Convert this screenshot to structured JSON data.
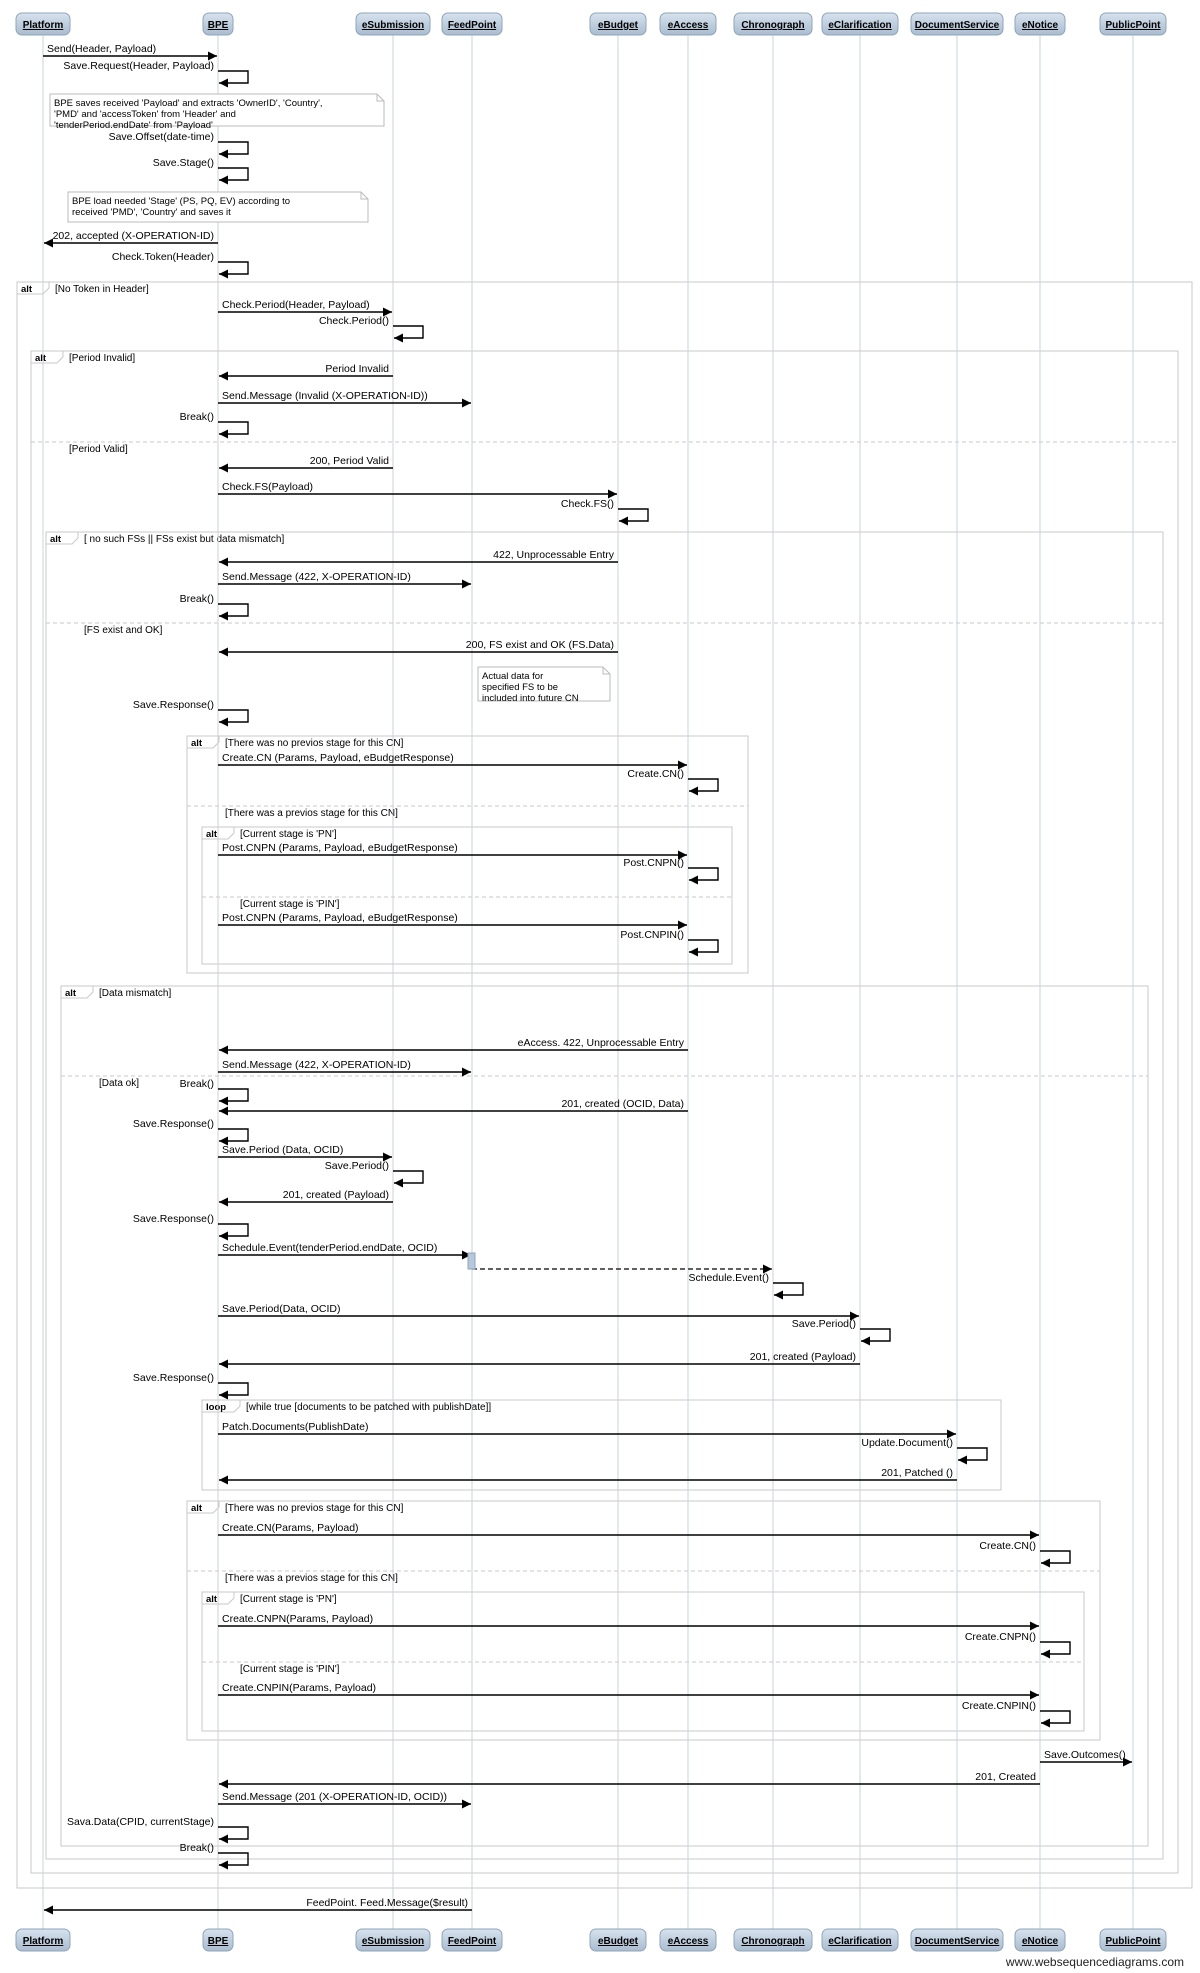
{
  "participants": [
    "Platform",
    "BPE",
    "eSubmission",
    "FeedPoint",
    "eBudget",
    "eAccess",
    "Chronograph",
    "eClarification",
    "DocumentService",
    "eNotice",
    "PublicPoint"
  ],
  "watermark": "www.websequencediagrams.com",
  "messages": [
    {
      "from": "Platform",
      "to": "BPE",
      "label": "Send(Header, Payload)"
    },
    {
      "from": "BPE",
      "to": "BPE",
      "label": "Save.Request(Header, Payload)"
    },
    {
      "note": "BPE saves received 'Payload' and extracts 'OwnerID', 'Country', 'PMD' and 'accessToken' from 'Header' and 'tenderPeriod.endDate' from 'Payload'"
    },
    {
      "from": "BPE",
      "to": "BPE",
      "label": "Save.Offset(date-time)"
    },
    {
      "from": "BPE",
      "to": "BPE",
      "label": "Save.Stage()"
    },
    {
      "note": "BPE load needed 'Stage' (PS, PQ, EV) according to received 'PMD', 'Country' and saves it"
    },
    {
      "from": "BPE",
      "to": "Platform",
      "label": "202, accepted (X-OPERATION-ID)"
    },
    {
      "from": "BPE",
      "to": "BPE",
      "label": "Check.Token(Header)"
    },
    {
      "from": "BPE",
      "to": "eSubmission",
      "label": "Check.Period(Header, Payload)"
    },
    {
      "from": "eSubmission",
      "to": "eSubmission",
      "label": "Check.Period()"
    },
    {
      "from": "eSubmission",
      "to": "BPE",
      "label": "Period Invalid"
    },
    {
      "from": "BPE",
      "to": "FeedPoint",
      "label": "Send.Message (Invalid (X-OPERATION-ID))"
    },
    {
      "from": "BPE",
      "to": "BPE",
      "label": "Break()"
    },
    {
      "from": "eSubmission",
      "to": "BPE",
      "label": "200, Period Valid"
    },
    {
      "from": "BPE",
      "to": "eBudget",
      "label": "Check.FS(Payload)"
    },
    {
      "from": "eBudget",
      "to": "eBudget",
      "label": "Check.FS()"
    },
    {
      "from": "eBudget",
      "to": "BPE",
      "label": "422, Unprocessable Entry"
    },
    {
      "from": "BPE",
      "to": "FeedPoint",
      "label": "Send.Message (422, X-OPERATION-ID)"
    },
    {
      "from": "BPE",
      "to": "BPE",
      "label": "Break()"
    },
    {
      "from": "eBudget",
      "to": "BPE",
      "label": "200, FS exist and OK (FS.Data)"
    },
    {
      "note": "Actual data for specified FS to be included into future CN"
    },
    {
      "from": "BPE",
      "to": "BPE",
      "label": "Save.Response()"
    },
    {
      "from": "BPE",
      "to": "eAccess",
      "label": "Create.CN (Params, Payload, eBudgetResponse)"
    },
    {
      "from": "eAccess",
      "to": "eAccess",
      "label": "Create.CN()"
    },
    {
      "from": "BPE",
      "to": "eAccess",
      "label": "Post.CNPN (Params, Payload, eBudgetResponse)"
    },
    {
      "from": "eAccess",
      "to": "eAccess",
      "label": "Post.CNPN()"
    },
    {
      "from": "BPE",
      "to": "eAccess",
      "label": "Post.CNPN (Params, Payload, eBudgetResponse)"
    },
    {
      "from": "eAccess",
      "to": "eAccess",
      "label": "Post.CNPIN()"
    },
    {
      "from": "eAccess",
      "to": "BPE",
      "label": "eAccess. 422, Unprocessable Entry"
    },
    {
      "from": "BPE",
      "to": "FeedPoint",
      "label": "Send.Message (422, X-OPERATION-ID)"
    },
    {
      "from": "BPE",
      "to": "BPE",
      "label": "Break()"
    },
    {
      "from": "eAccess",
      "to": "BPE",
      "label": "201, created (OCID, Data)"
    },
    {
      "from": "BPE",
      "to": "BPE",
      "label": "Save.Response()"
    },
    {
      "from": "BPE",
      "to": "eSubmission",
      "label": "Save.Period (Data, OCID)"
    },
    {
      "from": "eSubmission",
      "to": "eSubmission",
      "label": "Save.Period()"
    },
    {
      "from": "eSubmission",
      "to": "BPE",
      "label": "201, created (Payload)"
    },
    {
      "from": "BPE",
      "to": "BPE",
      "label": "Save.Response()"
    },
    {
      "from": "BPE",
      "to": "FeedPoint",
      "label": "Schedule.Event(tenderPeriod.endDate, OCID)"
    },
    {
      "from": "FeedPoint",
      "to": "Chronograph",
      "label": "",
      "dashed": true
    },
    {
      "from": "Chronograph",
      "to": "Chronograph",
      "label": "Schedule.Event()"
    },
    {
      "from": "BPE",
      "to": "eClarification",
      "label": "Save.Period(Data, OCID)"
    },
    {
      "from": "eClarification",
      "to": "eClarification",
      "label": "Save.Period()"
    },
    {
      "from": "eClarification",
      "to": "BPE",
      "label": "201, created (Payload)"
    },
    {
      "from": "BPE",
      "to": "BPE",
      "label": "Save.Response()"
    },
    {
      "from": "BPE",
      "to": "DocumentService",
      "label": "Patch.Documents(PublishDate)"
    },
    {
      "from": "DocumentService",
      "to": "DocumentService",
      "label": "Update.Document()"
    },
    {
      "from": "DocumentService",
      "to": "BPE",
      "label": "201, Patched ()"
    },
    {
      "from": "BPE",
      "to": "eNotice",
      "label": "Create.CN(Params, Payload)"
    },
    {
      "from": "eNotice",
      "to": "eNotice",
      "label": "Create.CN()"
    },
    {
      "from": "BPE",
      "to": "eNotice",
      "label": "Create.CNPN(Params, Payload)"
    },
    {
      "from": "eNotice",
      "to": "eNotice",
      "label": "Create.CNPN()"
    },
    {
      "from": "BPE",
      "to": "eNotice",
      "label": "Create.CNPIN(Params, Payload)"
    },
    {
      "from": "eNotice",
      "to": "eNotice",
      "label": "Create.CNPIN()"
    },
    {
      "from": "eNotice",
      "to": "PublicPoint",
      "label": "Save.Outcomes()"
    },
    {
      "from": "eNotice",
      "to": "BPE",
      "label": "201, Created"
    },
    {
      "from": "BPE",
      "to": "FeedPoint",
      "label": "Send.Message (201 (X-OPERATION-ID, OCID))"
    },
    {
      "from": "BPE",
      "to": "BPE",
      "label": "Sava.Data(CPID, currentStage)"
    },
    {
      "from": "BPE",
      "to": "BPE",
      "label": "Break()"
    },
    {
      "from": "FeedPoint",
      "to": "Platform",
      "label": "FeedPoint. Feed.Message($result)"
    }
  ],
  "fragments": [
    {
      "kind": "alt",
      "guards": [
        "[No Token in Header]"
      ]
    },
    {
      "kind": "alt",
      "guards": [
        "[Period Invalid]",
        "[Period Valid]"
      ]
    },
    {
      "kind": "alt",
      "guards": [
        "[ no such FSs || FSs exist but data mismatch]",
        "[FS exist and OK]"
      ]
    },
    {
      "kind": "alt",
      "guards": [
        "[There was no previos stage for this CN]",
        "[There was a previos stage for this CN]"
      ]
    },
    {
      "kind": "alt",
      "guards": [
        "[Current stage is 'PN']",
        "[Current stage is 'PIN']"
      ]
    },
    {
      "kind": "alt",
      "guards": [
        "[Data mismatch]",
        "[Data ok]"
      ]
    },
    {
      "kind": "loop",
      "guards": [
        "[while true [documents to be patched with publishDate]]"
      ]
    },
    {
      "kind": "alt",
      "guards": [
        "[There was no previos stage for this CN]",
        "[There was a previos stage for this CN]"
      ]
    },
    {
      "kind": "alt",
      "guards": [
        "[Current stage is 'PN']",
        "[Current stage is 'PIN']"
      ]
    }
  ]
}
